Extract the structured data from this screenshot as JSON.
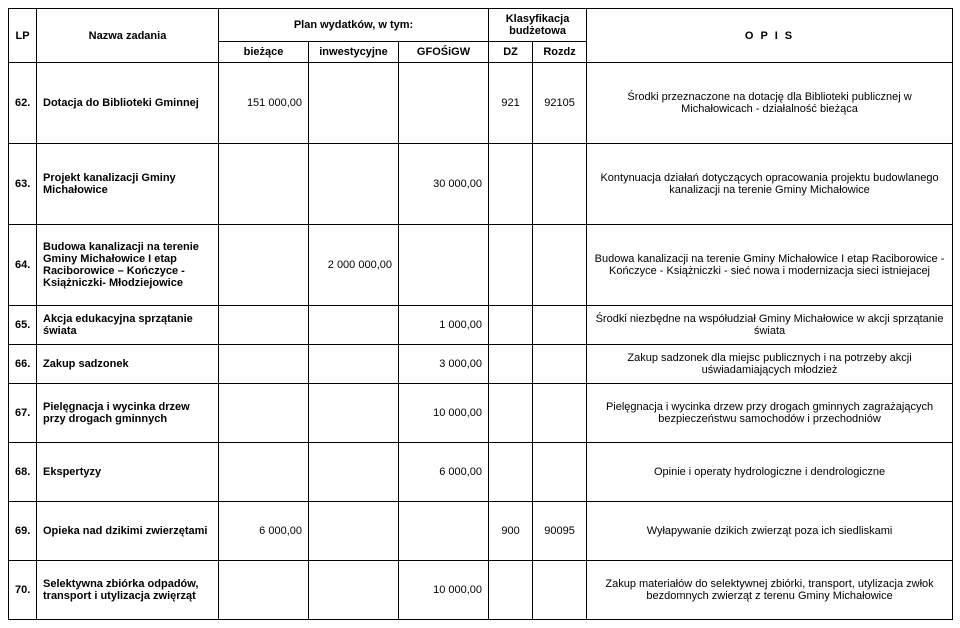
{
  "header": {
    "lp": "LP",
    "nazwa": "Nazwa zadania",
    "plan": "Plan wydatków, w tym:",
    "biezace": "bieżące",
    "inwest": "inwestycyjne",
    "gfo": "GFOŚiGW",
    "klas": "Klasyfikacja budżetowa",
    "dz": "DZ",
    "rozdz": "Rozdz",
    "opis": "O P I S"
  },
  "rows": [
    {
      "lp": "62.",
      "name": "Dotacja do Biblioteki Gminnej",
      "biezace": "151 000,00",
      "inwest": "",
      "gfo": "",
      "dz": "921",
      "rozdz": "92105",
      "opis": "Środki przeznaczone na dotację dla Biblioteki publicznej w Michałowicach - działalność bieżąca",
      "cls": "tall"
    },
    {
      "lp": "63.",
      "name": "Projekt kanalizacji Gminy Michałowice",
      "biezace": "",
      "inwest": "",
      "gfo": "30 000,00",
      "dz": "",
      "rozdz": "",
      "opis": "Kontynuacja działań dotyczących opracowania  projektu budowlanego kanalizacji na terenie Gminy Michałowice",
      "cls": "tall"
    },
    {
      "lp": "64.",
      "name": "Budowa kanalizacji na terenie Gminy Michałowice I etap Raciborowice – Kończyce - Książniczki- Młodziejowice",
      "biezace": "",
      "inwest": "2 000 000,00",
      "gfo": "",
      "dz": "",
      "rozdz": "",
      "opis": "Budowa kanalizacji na terenie Gminy Michałowice I etap Raciborowice -Kończyce -  Książniczki - sieć nowa i modernizacja sieci istniejacej",
      "cls": "tall"
    },
    {
      "lp": "65.",
      "name": "Akcja edukacyjna sprzątanie świata",
      "biezace": "",
      "inwest": "",
      "gfo": "1 000,00",
      "dz": "",
      "rozdz": "",
      "opis": "Środki niezbędne na współudział Gminy Michałowice w akcji sprzątanie świata",
      "cls": "short"
    },
    {
      "lp": "66.",
      "name": "Zakup sadzonek",
      "biezace": "",
      "inwest": "",
      "gfo": "3 000,00",
      "dz": "",
      "rozdz": "",
      "opis": "Zakup sadzonek dla miejsc publicznych i na potrzeby akcji uświadamiających młodzież",
      "cls": "short"
    },
    {
      "lp": "67.",
      "name": "Pielęgnacja i wycinka drzew przy drogach gminnych",
      "biezace": "",
      "inwest": "",
      "gfo": "10 000,00",
      "dz": "",
      "rozdz": "",
      "opis": "Pielęgnacja i wycinka drzew przy drogach gminnych zagrażających bezpieczeństwu samochodów i przechodniów",
      "cls": "med"
    },
    {
      "lp": "68.",
      "name": "Ekspertyzy",
      "biezace": "",
      "inwest": "",
      "gfo": "6 000,00",
      "dz": "",
      "rozdz": "",
      "opis": "Opinie i operaty hydrologiczne i dendrologiczne",
      "cls": "med"
    },
    {
      "lp": "69.",
      "name": "Opieka nad dzikimi zwierzętami",
      "biezace": "6 000,00",
      "inwest": "",
      "gfo": "",
      "dz": "900",
      "rozdz": "90095",
      "opis": "Wyłapywanie dzikich zwierząt poza ich siedliskami",
      "cls": "med"
    },
    {
      "lp": "70.",
      "name": "Selektywna zbiórka odpadów, transport i utylizacja zwięrząt",
      "biezace": "",
      "inwest": "",
      "gfo": "10 000,00",
      "dz": "",
      "rozdz": "",
      "opis": "Zakup materiałów do selektywnej zbiórki, transport, utylizacja zwłok bezdomnych zwierząt z terenu Gminy Michałowice",
      "cls": "med"
    }
  ]
}
